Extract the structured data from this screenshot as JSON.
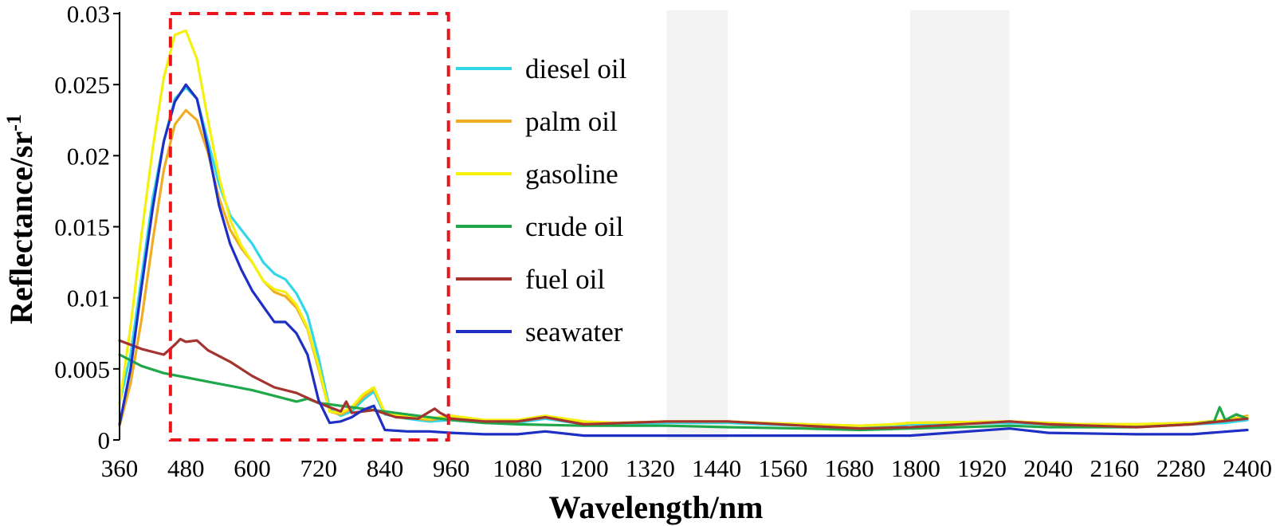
{
  "chart_data": {
    "type": "line",
    "title": "",
    "xlabel": "Wavelength/nm",
    "ylabel_main": "Reflectance/sr",
    "ylabel_sup": "-1",
    "xlim": [
      360,
      2400
    ],
    "ylim": [
      0,
      0.03
    ],
    "x_ticks": [
      360,
      480,
      600,
      720,
      840,
      960,
      1080,
      1200,
      1320,
      1440,
      1560,
      1680,
      1800,
      1920,
      2040,
      2160,
      2280,
      2400
    ],
    "y_ticks": [
      {
        "value": 0,
        "label": "0"
      },
      {
        "value": 0.005,
        "label": "0.005"
      },
      {
        "value": 0.01,
        "label": "0.01"
      },
      {
        "value": 0.015,
        "label": "0.015"
      },
      {
        "value": 0.02,
        "label": "0.02"
      },
      {
        "value": 0.025,
        "label": "0.025"
      },
      {
        "value": 0.03,
        "label": "0.03"
      }
    ],
    "grid": false,
    "legend_position": "upper-middle",
    "absorption_bands": [
      [
        1350,
        1460
      ],
      [
        1790,
        1970
      ]
    ],
    "highlight_box": {
      "x": [
        452,
        955
      ],
      "y": [
        0,
        0.03
      ],
      "color": "#e8151d"
    },
    "series": [
      {
        "name": "diesel oil",
        "color": "#33d6e6",
        "x": [
          360,
          380,
          400,
          420,
          440,
          460,
          480,
          500,
          520,
          540,
          560,
          580,
          600,
          620,
          640,
          660,
          680,
          700,
          720,
          740,
          760,
          780,
          800,
          820,
          840,
          880,
          920,
          960,
          1020,
          1080,
          1130,
          1200,
          1260,
          1350,
          1460,
          1520,
          1600,
          1700,
          1760,
          1790,
          1970,
          2040,
          2100,
          2200,
          2300,
          2360,
          2400
        ],
        "y": [
          0.0026,
          0.006,
          0.0115,
          0.017,
          0.021,
          0.024,
          0.0248,
          0.024,
          0.021,
          0.018,
          0.0158,
          0.0148,
          0.0138,
          0.0125,
          0.0117,
          0.0113,
          0.0103,
          0.0088,
          0.0058,
          0.0022,
          0.0017,
          0.002,
          0.0028,
          0.0034,
          0.0018,
          0.0015,
          0.0013,
          0.0014,
          0.0012,
          0.0012,
          0.0015,
          0.0011,
          0.0011,
          0.0012,
          0.0012,
          0.0011,
          0.001,
          0.0009,
          0.001,
          0.0011,
          0.0012,
          0.0011,
          0.001,
          0.001,
          0.0011,
          0.0012,
          0.0014
        ]
      },
      {
        "name": "palm oil",
        "color": "#f0ad23",
        "x": [
          360,
          380,
          400,
          420,
          440,
          460,
          480,
          500,
          520,
          540,
          560,
          580,
          600,
          620,
          640,
          660,
          680,
          700,
          720,
          740,
          760,
          780,
          800,
          820,
          840,
          880,
          920,
          960,
          1020,
          1080,
          1130,
          1200,
          1260,
          1350,
          1460,
          1520,
          1600,
          1700,
          1760,
          1790,
          1970,
          2040,
          2100,
          2200,
          2300,
          2360,
          2400
        ],
        "y": [
          0.001,
          0.004,
          0.0085,
          0.014,
          0.019,
          0.0222,
          0.0232,
          0.0225,
          0.0202,
          0.017,
          0.0148,
          0.0135,
          0.0125,
          0.0112,
          0.0104,
          0.0101,
          0.0093,
          0.0078,
          0.005,
          0.002,
          0.0018,
          0.0022,
          0.003,
          0.0036,
          0.0019,
          0.0016,
          0.0014,
          0.0016,
          0.0013,
          0.0013,
          0.0016,
          0.0012,
          0.0012,
          0.0013,
          0.0013,
          0.0012,
          0.0011,
          0.001,
          0.0011,
          0.0012,
          0.0013,
          0.0012,
          0.0011,
          0.0011,
          0.0012,
          0.0014,
          0.0017
        ]
      },
      {
        "name": "gasoline",
        "color": "#f4f10f",
        "x": [
          360,
          380,
          400,
          420,
          440,
          460,
          480,
          500,
          520,
          540,
          560,
          580,
          600,
          620,
          640,
          660,
          680,
          700,
          720,
          740,
          760,
          780,
          800,
          820,
          840,
          880,
          920,
          960,
          1020,
          1080,
          1130,
          1200,
          1260,
          1350,
          1460,
          1520,
          1600,
          1700,
          1760,
          1790,
          1970,
          2040,
          2100,
          2200,
          2300,
          2360,
          2400
        ],
        "y": [
          0.0025,
          0.008,
          0.0145,
          0.0205,
          0.0255,
          0.0285,
          0.0288,
          0.0268,
          0.0225,
          0.0185,
          0.0155,
          0.0137,
          0.0125,
          0.0112,
          0.0106,
          0.0104,
          0.0095,
          0.0079,
          0.0052,
          0.002,
          0.0019,
          0.0023,
          0.0032,
          0.0037,
          0.0019,
          0.0017,
          0.0015,
          0.0017,
          0.0014,
          0.0014,
          0.0017,
          0.0013,
          0.0012,
          0.0013,
          0.0013,
          0.0012,
          0.0011,
          0.001,
          0.0011,
          0.0012,
          0.0013,
          0.0012,
          0.0011,
          0.0011,
          0.0012,
          0.0014,
          0.0016
        ]
      },
      {
        "name": "crude oil",
        "color": "#1fa84a",
        "x": [
          360,
          400,
          440,
          480,
          520,
          560,
          600,
          640,
          680,
          700,
          720,
          760,
          800,
          840,
          880,
          920,
          960,
          1020,
          1080,
          1200,
          1350,
          1460,
          1600,
          1700,
          1790,
          1970,
          2040,
          2200,
          2300,
          2340,
          2350,
          2360,
          2380,
          2400
        ],
        "y": [
          0.006,
          0.0052,
          0.0047,
          0.0044,
          0.0041,
          0.0038,
          0.0035,
          0.0031,
          0.0027,
          0.0029,
          0.0026,
          0.0024,
          0.0022,
          0.002,
          0.0018,
          0.0016,
          0.0014,
          0.0012,
          0.0011,
          0.001,
          0.001,
          0.0009,
          0.0008,
          0.0007,
          0.0008,
          0.001,
          0.0009,
          0.0009,
          0.0011,
          0.0013,
          0.0023,
          0.0014,
          0.0018,
          0.0015
        ]
      },
      {
        "name": "fuel oil",
        "color": "#a3342f",
        "x": [
          360,
          400,
          440,
          460,
          470,
          480,
          500,
          520,
          560,
          600,
          640,
          680,
          720,
          760,
          770,
          780,
          820,
          860,
          900,
          930,
          940,
          960,
          1020,
          1080,
          1130,
          1200,
          1350,
          1460,
          1600,
          1700,
          1790,
          1970,
          2040,
          2200,
          2300,
          2400
        ],
        "y": [
          0.007,
          0.0064,
          0.006,
          0.0067,
          0.0071,
          0.0069,
          0.007,
          0.0063,
          0.0055,
          0.0045,
          0.0037,
          0.0033,
          0.0026,
          0.002,
          0.0027,
          0.0019,
          0.0021,
          0.0016,
          0.0015,
          0.0022,
          0.0019,
          0.0015,
          0.0013,
          0.0013,
          0.0016,
          0.0011,
          0.0013,
          0.0013,
          0.001,
          0.0008,
          0.0009,
          0.0013,
          0.0011,
          0.0009,
          0.0011,
          0.0015
        ]
      },
      {
        "name": "seawater",
        "color": "#1f2ec3",
        "x": [
          360,
          380,
          400,
          420,
          440,
          460,
          480,
          500,
          520,
          540,
          560,
          580,
          600,
          620,
          640,
          660,
          680,
          700,
          720,
          740,
          760,
          780,
          800,
          820,
          840,
          880,
          920,
          960,
          1020,
          1080,
          1130,
          1200,
          1350,
          1460,
          1600,
          1700,
          1790,
          1970,
          2040,
          2200,
          2300,
          2400
        ],
        "y": [
          0.0011,
          0.005,
          0.0108,
          0.0163,
          0.021,
          0.0238,
          0.025,
          0.024,
          0.0205,
          0.0165,
          0.0138,
          0.012,
          0.0105,
          0.0094,
          0.0083,
          0.0083,
          0.0075,
          0.006,
          0.0028,
          0.0012,
          0.0013,
          0.0016,
          0.0021,
          0.0024,
          0.0007,
          0.0006,
          0.0006,
          0.0005,
          0.0004,
          0.0004,
          0.0006,
          0.0003,
          0.0003,
          0.0003,
          0.0003,
          0.0003,
          0.0003,
          0.0008,
          0.0005,
          0.0004,
          0.0004,
          0.0007
        ]
      }
    ]
  }
}
